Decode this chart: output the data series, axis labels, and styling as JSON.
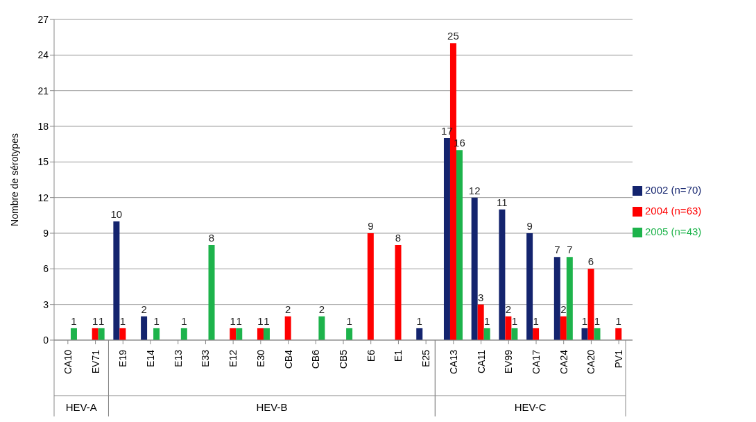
{
  "chart_data": {
    "type": "bar",
    "ylabel": "Nombre de sérotypes",
    "categories": [
      "CA10",
      "EV71",
      "E19",
      "E14",
      "E13",
      "E33",
      "E12",
      "E30",
      "CB4",
      "CB6",
      "CB5",
      "E6",
      "E1",
      "E25",
      "CA13",
      "CA11",
      "EV99",
      "CA17",
      "CA24",
      "CA20",
      "PV1"
    ],
    "series": [
      {
        "name": "2002 (n=70)",
        "color": "#14246e",
        "values": [
          null,
          null,
          10,
          2,
          null,
          null,
          null,
          null,
          null,
          null,
          null,
          null,
          null,
          1,
          17,
          12,
          11,
          9,
          7,
          1,
          null
        ]
      },
      {
        "name": "2004 (n=63)",
        "color": "#ff0000",
        "values": [
          null,
          1,
          1,
          null,
          null,
          null,
          1,
          1,
          2,
          null,
          null,
          9,
          8,
          null,
          25,
          3,
          2,
          1,
          2,
          6,
          1
        ]
      },
      {
        "name": "2005 (n=43)",
        "color": "#1db34b",
        "values": [
          1,
          1,
          null,
          1,
          1,
          8,
          1,
          1,
          null,
          2,
          1,
          null,
          null,
          null,
          16,
          1,
          1,
          null,
          7,
          1,
          null
        ]
      }
    ],
    "annotations": [
      "HEV-A",
      "HEV-B",
      "HEV-C"
    ],
    "ylim": [
      0,
      27
    ],
    "yticks": [
      0,
      3,
      6,
      9,
      12,
      15,
      18,
      21,
      24,
      27
    ],
    "grid": "y",
    "legend": "right",
    "data_labels": true
  }
}
